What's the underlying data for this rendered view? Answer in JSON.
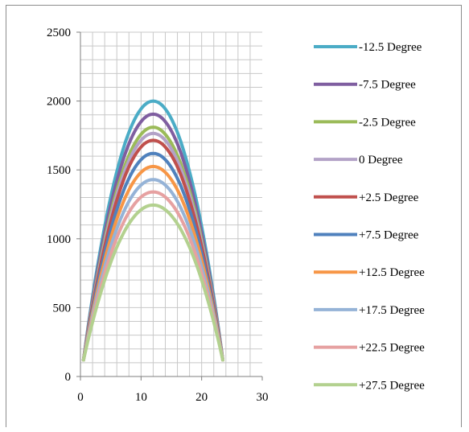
{
  "chart_data": {
    "type": "line",
    "title": "",
    "xlabel": "",
    "ylabel": "",
    "xlim": [
      0,
      30
    ],
    "ylim": [
      0,
      2500
    ],
    "x_ticks": [
      "0",
      "10",
      "20",
      "30"
    ],
    "y_ticks": [
      "0",
      "500",
      "1000",
      "1500",
      "2000",
      "2500"
    ],
    "grid": true,
    "legend_position": "right",
    "x_range_of_curves": [
      0.5,
      23.5
    ],
    "x_at_peak": 12,
    "y_at_ends": 120,
    "series": [
      {
        "name": "-12.5 Degree",
        "color": "#4bacc6",
        "peak": 2000
      },
      {
        "name": "-7.5 Degree",
        "color": "#7f5ea0",
        "peak": 1905
      },
      {
        "name": "-2.5 Degree",
        "color": "#9bbb59",
        "peak": 1810
      },
      {
        "name": "0 Degree",
        "color": "#b3a2c7",
        "peak": 1765
      },
      {
        "name": "+2.5 Degree",
        "color": "#c0504d",
        "peak": 1715
      },
      {
        "name": "+7.5 Degree",
        "color": "#4f81bd",
        "peak": 1620
      },
      {
        "name": "+12.5 Degree",
        "color": "#f79646",
        "peak": 1525
      },
      {
        "name": "+17.5 Degree",
        "color": "#95b3d7",
        "peak": 1430
      },
      {
        "name": "+22.5 Degree",
        "color": "#e6a1a1",
        "peak": 1340
      },
      {
        "name": "+27.5 Degree",
        "color": "#b3d18f",
        "peak": 1245
      }
    ]
  }
}
